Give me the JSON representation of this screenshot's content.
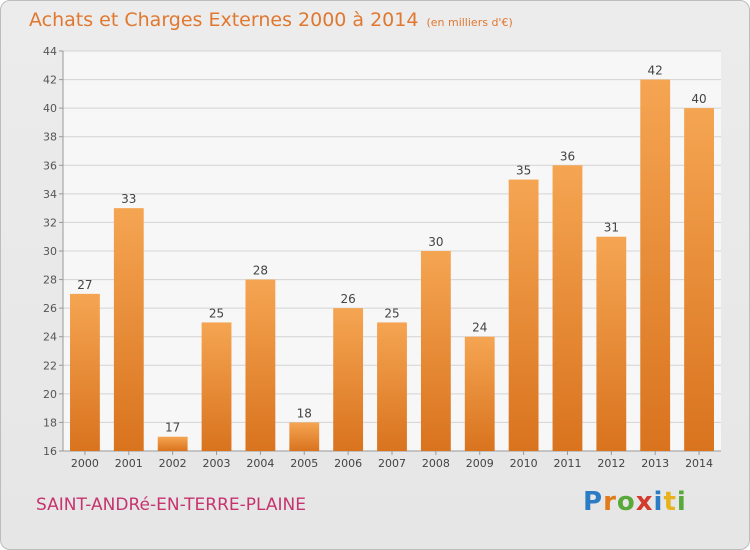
{
  "title": "Achats et Charges Externes 2000 à 2014",
  "subtitle": "(en milliers d'€)",
  "place": "SAINT-ANDRé-EN-TERRE-PLAINE",
  "logo_letters": [
    "P",
    "r",
    "o",
    "x",
    "i",
    "t",
    "i"
  ],
  "colors": {
    "bar_top": "#f5a552",
    "bar_bottom": "#d9731e",
    "title": "#e07830",
    "place": "#c6336d"
  },
  "chart_data": {
    "type": "bar",
    "categories": [
      "2000",
      "2001",
      "2002",
      "2003",
      "2004",
      "2005",
      "2006",
      "2007",
      "2008",
      "2009",
      "2010",
      "2011",
      "2012",
      "2013",
      "2014"
    ],
    "values": [
      27,
      33,
      17,
      25,
      28,
      18,
      26,
      25,
      30,
      24,
      35,
      36,
      31,
      42,
      40
    ],
    "ylim": [
      16,
      44
    ],
    "yticks": [
      16,
      18,
      20,
      22,
      24,
      26,
      28,
      30,
      32,
      34,
      36,
      38,
      40,
      42,
      44
    ],
    "grid": true,
    "data_labels": true
  }
}
